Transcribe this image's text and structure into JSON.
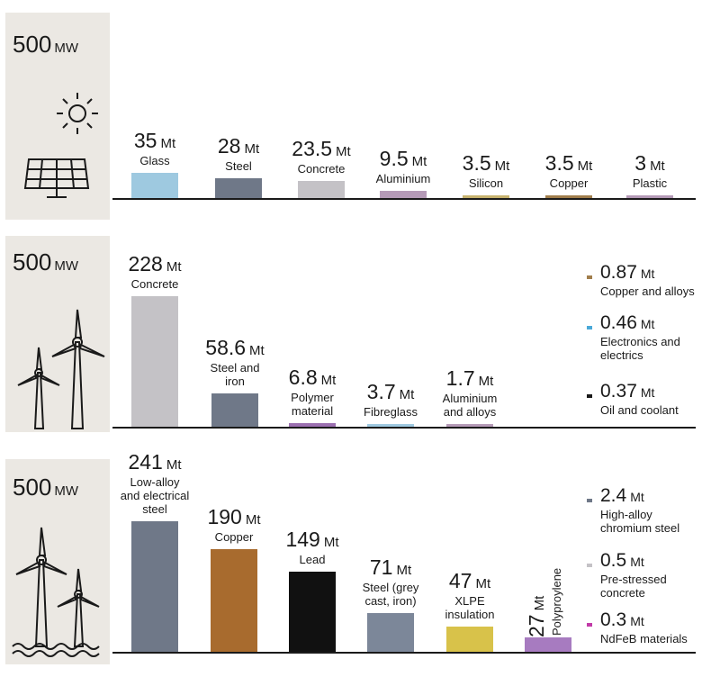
{
  "chart_data": [
    {
      "type": "bar",
      "capacity": "500",
      "capacity_unit": "MW",
      "unit": "Mt",
      "categories": [
        "Glass",
        "Steel",
        "Concrete",
        "Aluminium",
        "Silicon",
        "Copper",
        "Plastic"
      ],
      "values": [
        35,
        28,
        23.5,
        9.5,
        3.5,
        3.5,
        3
      ],
      "value_labels": [
        "35",
        "28",
        "23.5",
        "9.5",
        "3.5",
        "3.5",
        "3"
      ],
      "colors": [
        "#9ec9e0",
        "#6f7888",
        "#c4c2c6",
        "#b59ab7",
        "#c7b36e",
        "#a17e4c",
        "#b59ab7"
      ]
    },
    {
      "type": "bar",
      "capacity": "500",
      "capacity_unit": "MW",
      "unit": "Mt",
      "categories": [
        "Concrete",
        "Steel and\niron",
        "Polymer\nmaterial",
        "Fibreglass",
        "Aluminium\nand alloys"
      ],
      "values": [
        228,
        58.6,
        6.8,
        3.7,
        1.7
      ],
      "value_labels": [
        "228",
        "58.6",
        "6.8",
        "3.7",
        "1.7"
      ],
      "colors": [
        "#c4c2c6",
        "#6f7888",
        "#9b6fb0",
        "#9ec9e0",
        "#b59ab7"
      ],
      "legend": [
        {
          "value": "0.87",
          "label": "Copper and alloys",
          "color": "#a17e4c"
        },
        {
          "value": "0.46",
          "label": "Electronics and\nelectrics",
          "color": "#4aa9d8"
        },
        {
          "value": "0.37",
          "label": "Oil and coolant",
          "color": "#1a1a1a"
        }
      ]
    },
    {
      "type": "bar",
      "capacity": "500",
      "capacity_unit": "MW",
      "unit": "Mt",
      "categories": [
        "Low-alloy\nand electrical\nsteel",
        "Copper",
        "Lead",
        "Steel (grey\ncast, iron)",
        "XLPE\ninsulation",
        "Polyproylene"
      ],
      "values": [
        241,
        190,
        149,
        71,
        47,
        27
      ],
      "value_labels": [
        "241",
        "190",
        "149",
        "71",
        "47",
        "27"
      ],
      "colors": [
        "#6f7888",
        "#a86b2e",
        "#111111",
        "#7c8799",
        "#d8c24a",
        "#a77bc0"
      ],
      "legend": [
        {
          "value": "2.4",
          "label": "High-alloy\nchromium steel",
          "color": "#6f7888"
        },
        {
          "value": "0.5",
          "label": "Pre-stressed\nconcrete",
          "color": "#c4c2c6"
        },
        {
          "value": "0.3",
          "label": "NdFeB materials",
          "color": "#c23aa8"
        }
      ]
    }
  ]
}
